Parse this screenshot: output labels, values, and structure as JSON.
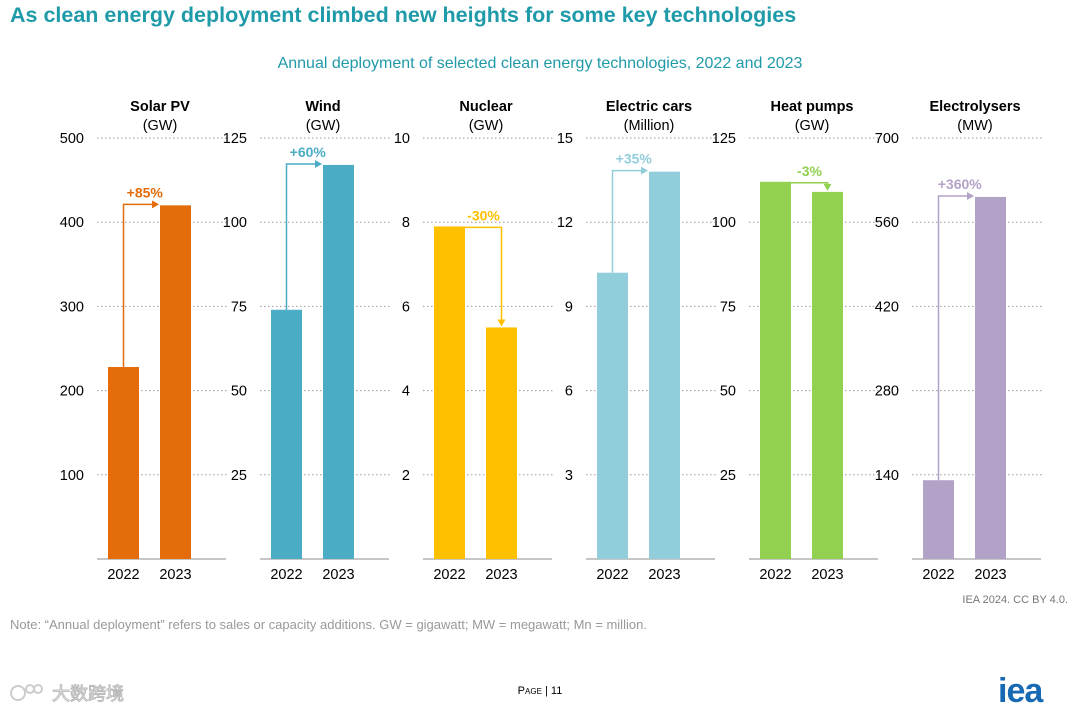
{
  "header": {
    "title": "As clean energy deployment climbed new heights for some key technologies",
    "subtitle": "Annual deployment of selected clean energy technologies, 2022 and 2023"
  },
  "chart_data": [
    {
      "type": "bar",
      "title": "Solar PV",
      "unit": "(GW)",
      "categories": [
        "2022",
        "2023"
      ],
      "values": [
        228,
        420
      ],
      "ylim": [
        0,
        500
      ],
      "ticks": [
        100,
        200,
        300,
        400,
        500
      ],
      "change": "+85%",
      "color": "#e46c0a",
      "grid": true
    },
    {
      "type": "bar",
      "title": "Wind",
      "unit": "(GW)",
      "categories": [
        "2022",
        "2023"
      ],
      "values": [
        74,
        117
      ],
      "ylim": [
        0,
        125
      ],
      "ticks": [
        25,
        50,
        75,
        100,
        125
      ],
      "change": "+60%",
      "color": "#4bacc6",
      "grid": true
    },
    {
      "type": "bar",
      "title": "Nuclear",
      "unit": "(GW)",
      "categories": [
        "2022",
        "2023"
      ],
      "values": [
        7.9,
        5.5
      ],
      "ylim": [
        0,
        10
      ],
      "ticks": [
        2,
        4,
        6,
        8,
        10
      ],
      "change": "-30%",
      "color": "#ffc000",
      "grid": true
    },
    {
      "type": "bar",
      "title": "Electric cars",
      "unit": "(Million)",
      "categories": [
        "2022",
        "2023"
      ],
      "values": [
        10.2,
        13.8
      ],
      "ylim": [
        0,
        15
      ],
      "ticks": [
        3,
        6,
        9,
        12,
        15
      ],
      "change": "+35%",
      "color": "#92cddc",
      "grid": true
    },
    {
      "type": "bar",
      "title": "Heat pumps",
      "unit": "(GW)",
      "categories": [
        "2022",
        "2023"
      ],
      "values": [
        112,
        109
      ],
      "ylim": [
        0,
        125
      ],
      "ticks": [
        25,
        50,
        75,
        100,
        125
      ],
      "change": "-3%",
      "color": "#92d050",
      "grid": true
    },
    {
      "type": "bar",
      "title": "Electrolysers",
      "unit": "(MW)",
      "categories": [
        "2022",
        "2023"
      ],
      "values": [
        131,
        602
      ],
      "ylim": [
        0,
        700
      ],
      "ticks": [
        140,
        280,
        420,
        560,
        700
      ],
      "change": "+360%",
      "color": "#b3a2c7",
      "grid": true
    }
  ],
  "footer": {
    "credit": "IEA 2024. CC BY 4.0.",
    "note": "Note: “Annual deployment” refers to sales or capacity additions. GW = gigawatt; MW = megawatt; Mn = million.",
    "page_word": "Page",
    "page_sep": " | ",
    "page_number": "11",
    "watermark": "大数跨境",
    "logo": "iea"
  },
  "icons": {
    "watermark": "brand-watermark-icon",
    "logo": "iea-logo"
  }
}
